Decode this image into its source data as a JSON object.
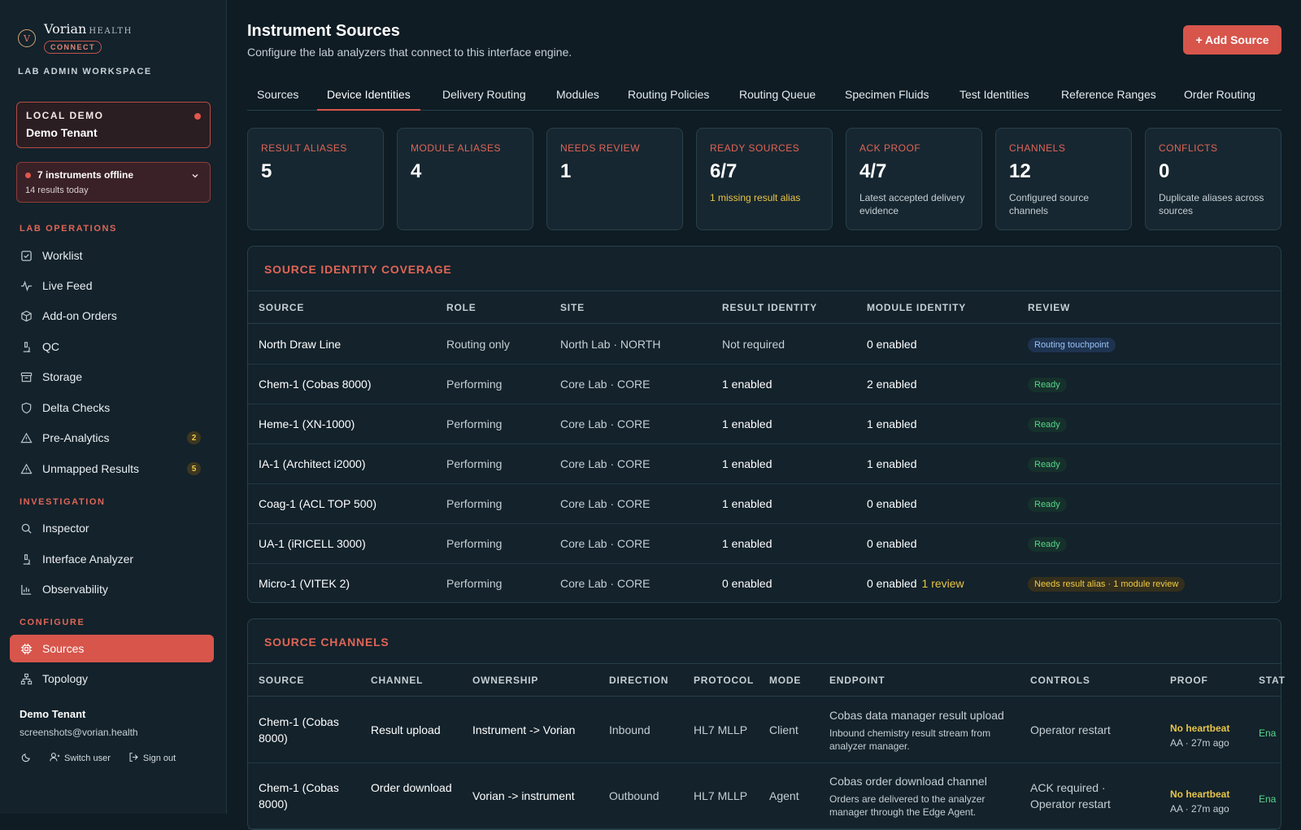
{
  "sidebar": {
    "brand": {
      "name": "Vorian",
      "health": "HEALTH",
      "connect": "CONNECT",
      "logo_glyph": "V"
    },
    "workspace": "LAB ADMIN WORKSPACE",
    "tenant": {
      "label": "LOCAL DEMO",
      "name": "Demo Tenant"
    },
    "offline": {
      "title": "7 instruments offline",
      "sub": "14 results today"
    },
    "sections": {
      "lab_operations": "LAB OPERATIONS",
      "investigation": "INVESTIGATION",
      "configure": "CONFIGURE"
    },
    "items": {
      "worklist": "Worklist",
      "live_feed": "Live Feed",
      "addon_orders": "Add-on Orders",
      "qc": "QC",
      "storage": "Storage",
      "delta_checks": "Delta Checks",
      "pre_analytics": "Pre-Analytics",
      "pre_analytics_badge": "2",
      "unmapped_results": "Unmapped Results",
      "unmapped_results_badge": "5",
      "inspector": "Inspector",
      "interface_analyzer": "Interface Analyzer",
      "observability": "Observability",
      "sources": "Sources",
      "topology": "Topology"
    },
    "user": {
      "name": "Demo Tenant",
      "email": "screenshots@vorian.health",
      "switch_user": "Switch user",
      "sign_out": "Sign out"
    }
  },
  "header": {
    "title": "Instrument Sources",
    "subtitle": "Configure the lab analyzers that connect to this interface engine.",
    "add_button": "+ Add Source"
  },
  "tabs": [
    "Sources",
    "Device Identities",
    "Delivery Routing",
    "Modules",
    "Routing Policies",
    "Routing Queue",
    "Specimen Fluids",
    "Test Identities",
    "Reference Ranges",
    "Order Routing"
  ],
  "active_tab": "Device Identities",
  "stats": [
    {
      "label": "RESULT ALIASES",
      "value": "5",
      "note": ""
    },
    {
      "label": "MODULE ALIASES",
      "value": "4",
      "note": ""
    },
    {
      "label": "NEEDS REVIEW",
      "value": "1",
      "note": ""
    },
    {
      "label": "READY SOURCES",
      "value": "6/7",
      "note": "1 missing result alias"
    },
    {
      "label": "ACK PROOF",
      "value": "4/7",
      "note": "Latest accepted delivery evidence"
    },
    {
      "label": "CHANNELS",
      "value": "12",
      "note": "Configured source channels"
    },
    {
      "label": "CONFLICTS",
      "value": "0",
      "note": "Duplicate aliases across sources"
    }
  ],
  "coverage": {
    "title": "SOURCE IDENTITY COVERAGE",
    "columns": [
      "SOURCE",
      "ROLE",
      "SITE",
      "RESULT IDENTITY",
      "MODULE IDENTITY",
      "REVIEW"
    ],
    "rows": [
      {
        "source": "North Draw Line",
        "role": "Routing only",
        "site": "North Lab · NORTH",
        "result": "Not required",
        "module": "0 enabled",
        "module_review": "",
        "review": "Routing touchpoint",
        "review_kind": "blue"
      },
      {
        "source": "Chem-1 (Cobas 8000)",
        "role": "Performing",
        "site": "Core Lab · CORE",
        "result": "1 enabled",
        "module": "2 enabled",
        "module_review": "",
        "review": "Ready",
        "review_kind": "green"
      },
      {
        "source": "Heme-1 (XN-1000)",
        "role": "Performing",
        "site": "Core Lab · CORE",
        "result": "1 enabled",
        "module": "1 enabled",
        "module_review": "",
        "review": "Ready",
        "review_kind": "green"
      },
      {
        "source": "IA-1 (Architect i2000)",
        "role": "Performing",
        "site": "Core Lab · CORE",
        "result": "1 enabled",
        "module": "1 enabled",
        "module_review": "",
        "review": "Ready",
        "review_kind": "green"
      },
      {
        "source": "Coag-1 (ACL TOP 500)",
        "role": "Performing",
        "site": "Core Lab · CORE",
        "result": "1 enabled",
        "module": "0 enabled",
        "module_review": "",
        "review": "Ready",
        "review_kind": "green"
      },
      {
        "source": "UA-1 (iRICELL 3000)",
        "role": "Performing",
        "site": "Core Lab · CORE",
        "result": "1 enabled",
        "module": "0 enabled",
        "module_review": "",
        "review": "Ready",
        "review_kind": "green"
      },
      {
        "source": "Micro-1 (VITEK 2)",
        "role": "Performing",
        "site": "Core Lab · CORE",
        "result": "0 enabled",
        "module": "0 enabled",
        "module_review": "1 review",
        "review": "Needs result alias · 1 module review",
        "review_kind": "yellow"
      }
    ]
  },
  "channels": {
    "title": "SOURCE CHANNELS",
    "columns": [
      "SOURCE",
      "CHANNEL",
      "OWNERSHIP",
      "DIRECTION",
      "PROTOCOL",
      "MODE",
      "ENDPOINT",
      "CONTROLS",
      "PROOF",
      "STAT"
    ],
    "rows": [
      {
        "source": "Chem-1 (Cobas 8000)",
        "channel": "Result upload",
        "ownership": "Instrument -> Vorian",
        "direction": "Inbound",
        "protocol": "HL7 MLLP",
        "mode": "Client",
        "endpoint": "Cobas data manager result upload",
        "endpoint_sub": "Inbound chemistry result stream from analyzer manager.",
        "controls": "Operator restart",
        "proof": "No heartbeat",
        "proof_sub": "AA · 27m ago",
        "status": "Ena"
      },
      {
        "source": "Chem-1 (Cobas 8000)",
        "channel": "Order download",
        "ownership": "Vorian -> instrument",
        "direction": "Outbound",
        "protocol": "HL7 MLLP",
        "mode": "Agent",
        "endpoint": "Cobas order download channel",
        "endpoint_sub": "Orders are delivered to the analyzer manager through the Edge Agent.",
        "controls": "ACK required · Operator restart",
        "proof": "No heartbeat",
        "proof_sub": "AA · 27m ago",
        "status": "Ena"
      }
    ]
  }
}
